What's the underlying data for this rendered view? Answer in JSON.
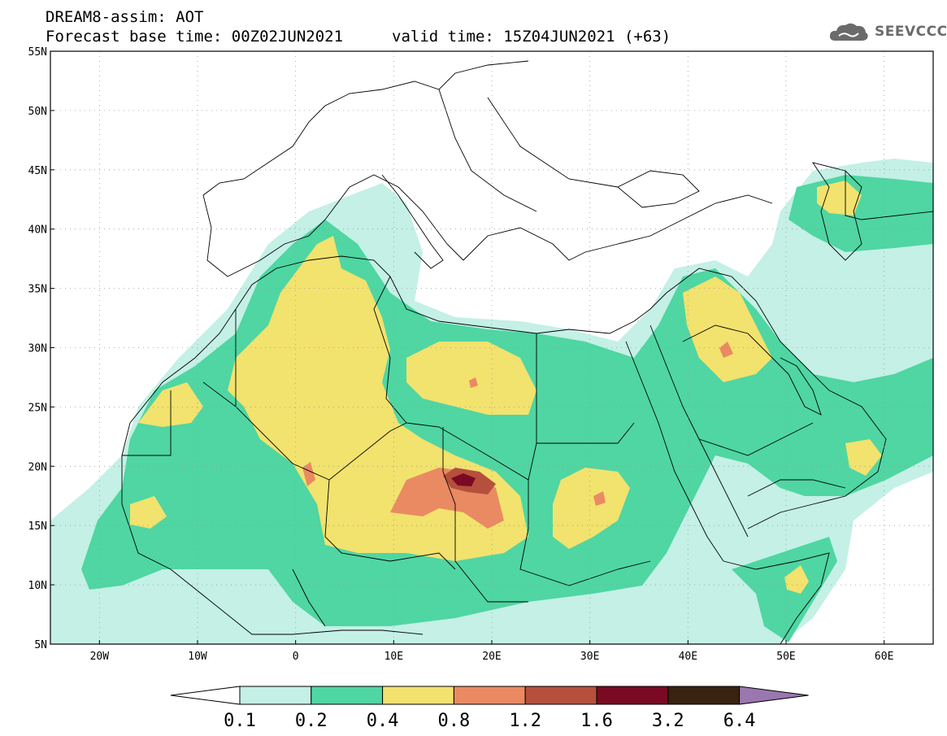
{
  "header": {
    "title": "DREAM8-assim: AOT",
    "base_time": "Forecast base time: 00Z02JUN2021",
    "valid_time": "valid time: 15Z04JUN2021 (+63)"
  },
  "logo": {
    "text": "SEEVCCC",
    "icon": "cloud-icon",
    "color": "#6b6b6b"
  },
  "map": {
    "lon_range": [
      -25,
      65
    ],
    "lat_range": [
      5,
      55
    ],
    "lat_ticks": [
      "55N",
      "50N",
      "45N",
      "40N",
      "35N",
      "30N",
      "25N",
      "20N",
      "15N",
      "10N",
      "5N"
    ],
    "lon_ticks": [
      "20W",
      "10W",
      "0",
      "10E",
      "20E",
      "30E",
      "40E",
      "50E",
      "60E"
    ]
  },
  "colorbar": {
    "colors": [
      "#c4f0e6",
      "#4fd6a2",
      "#f2e26e",
      "#ea8a62",
      "#b5503c",
      "#7a0a23",
      "#3a2210",
      "#9b77b0"
    ],
    "labels": [
      "0.1",
      "0.2",
      "0.4",
      "0.8",
      "1.2",
      "1.6",
      "3.2",
      "6.4"
    ]
  }
}
